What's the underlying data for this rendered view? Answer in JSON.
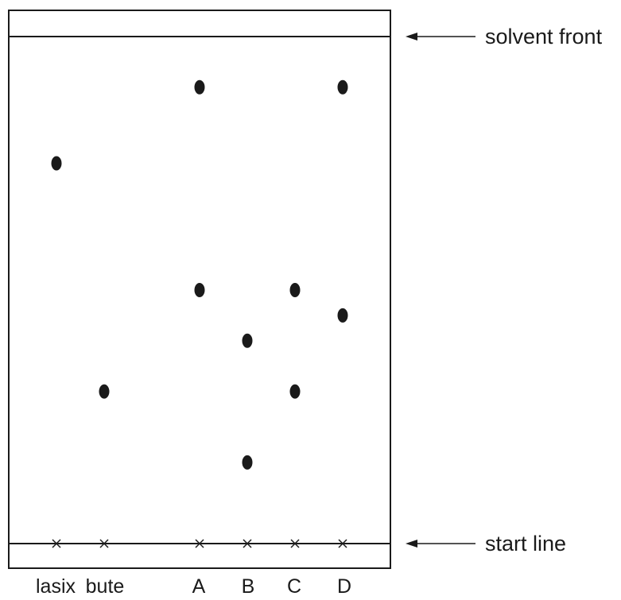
{
  "labels": {
    "solvent_front": "solvent front",
    "start_line": "start line"
  },
  "lanes": [
    {
      "label": "lasix",
      "spot_rf": [
        0.75
      ]
    },
    {
      "label": "bute",
      "spot_rf": [
        0.3
      ]
    },
    {
      "label": "A",
      "spot_rf": [
        0.9,
        0.5
      ]
    },
    {
      "label": "B",
      "spot_rf": [
        0.4,
        0.16
      ]
    },
    {
      "label": "C",
      "spot_rf": [
        0.5,
        0.3
      ]
    },
    {
      "label": "D",
      "spot_rf": [
        0.9,
        0.45
      ]
    }
  ],
  "colors": {
    "ink": "#1a1a1a",
    "background": "#ffffff"
  }
}
